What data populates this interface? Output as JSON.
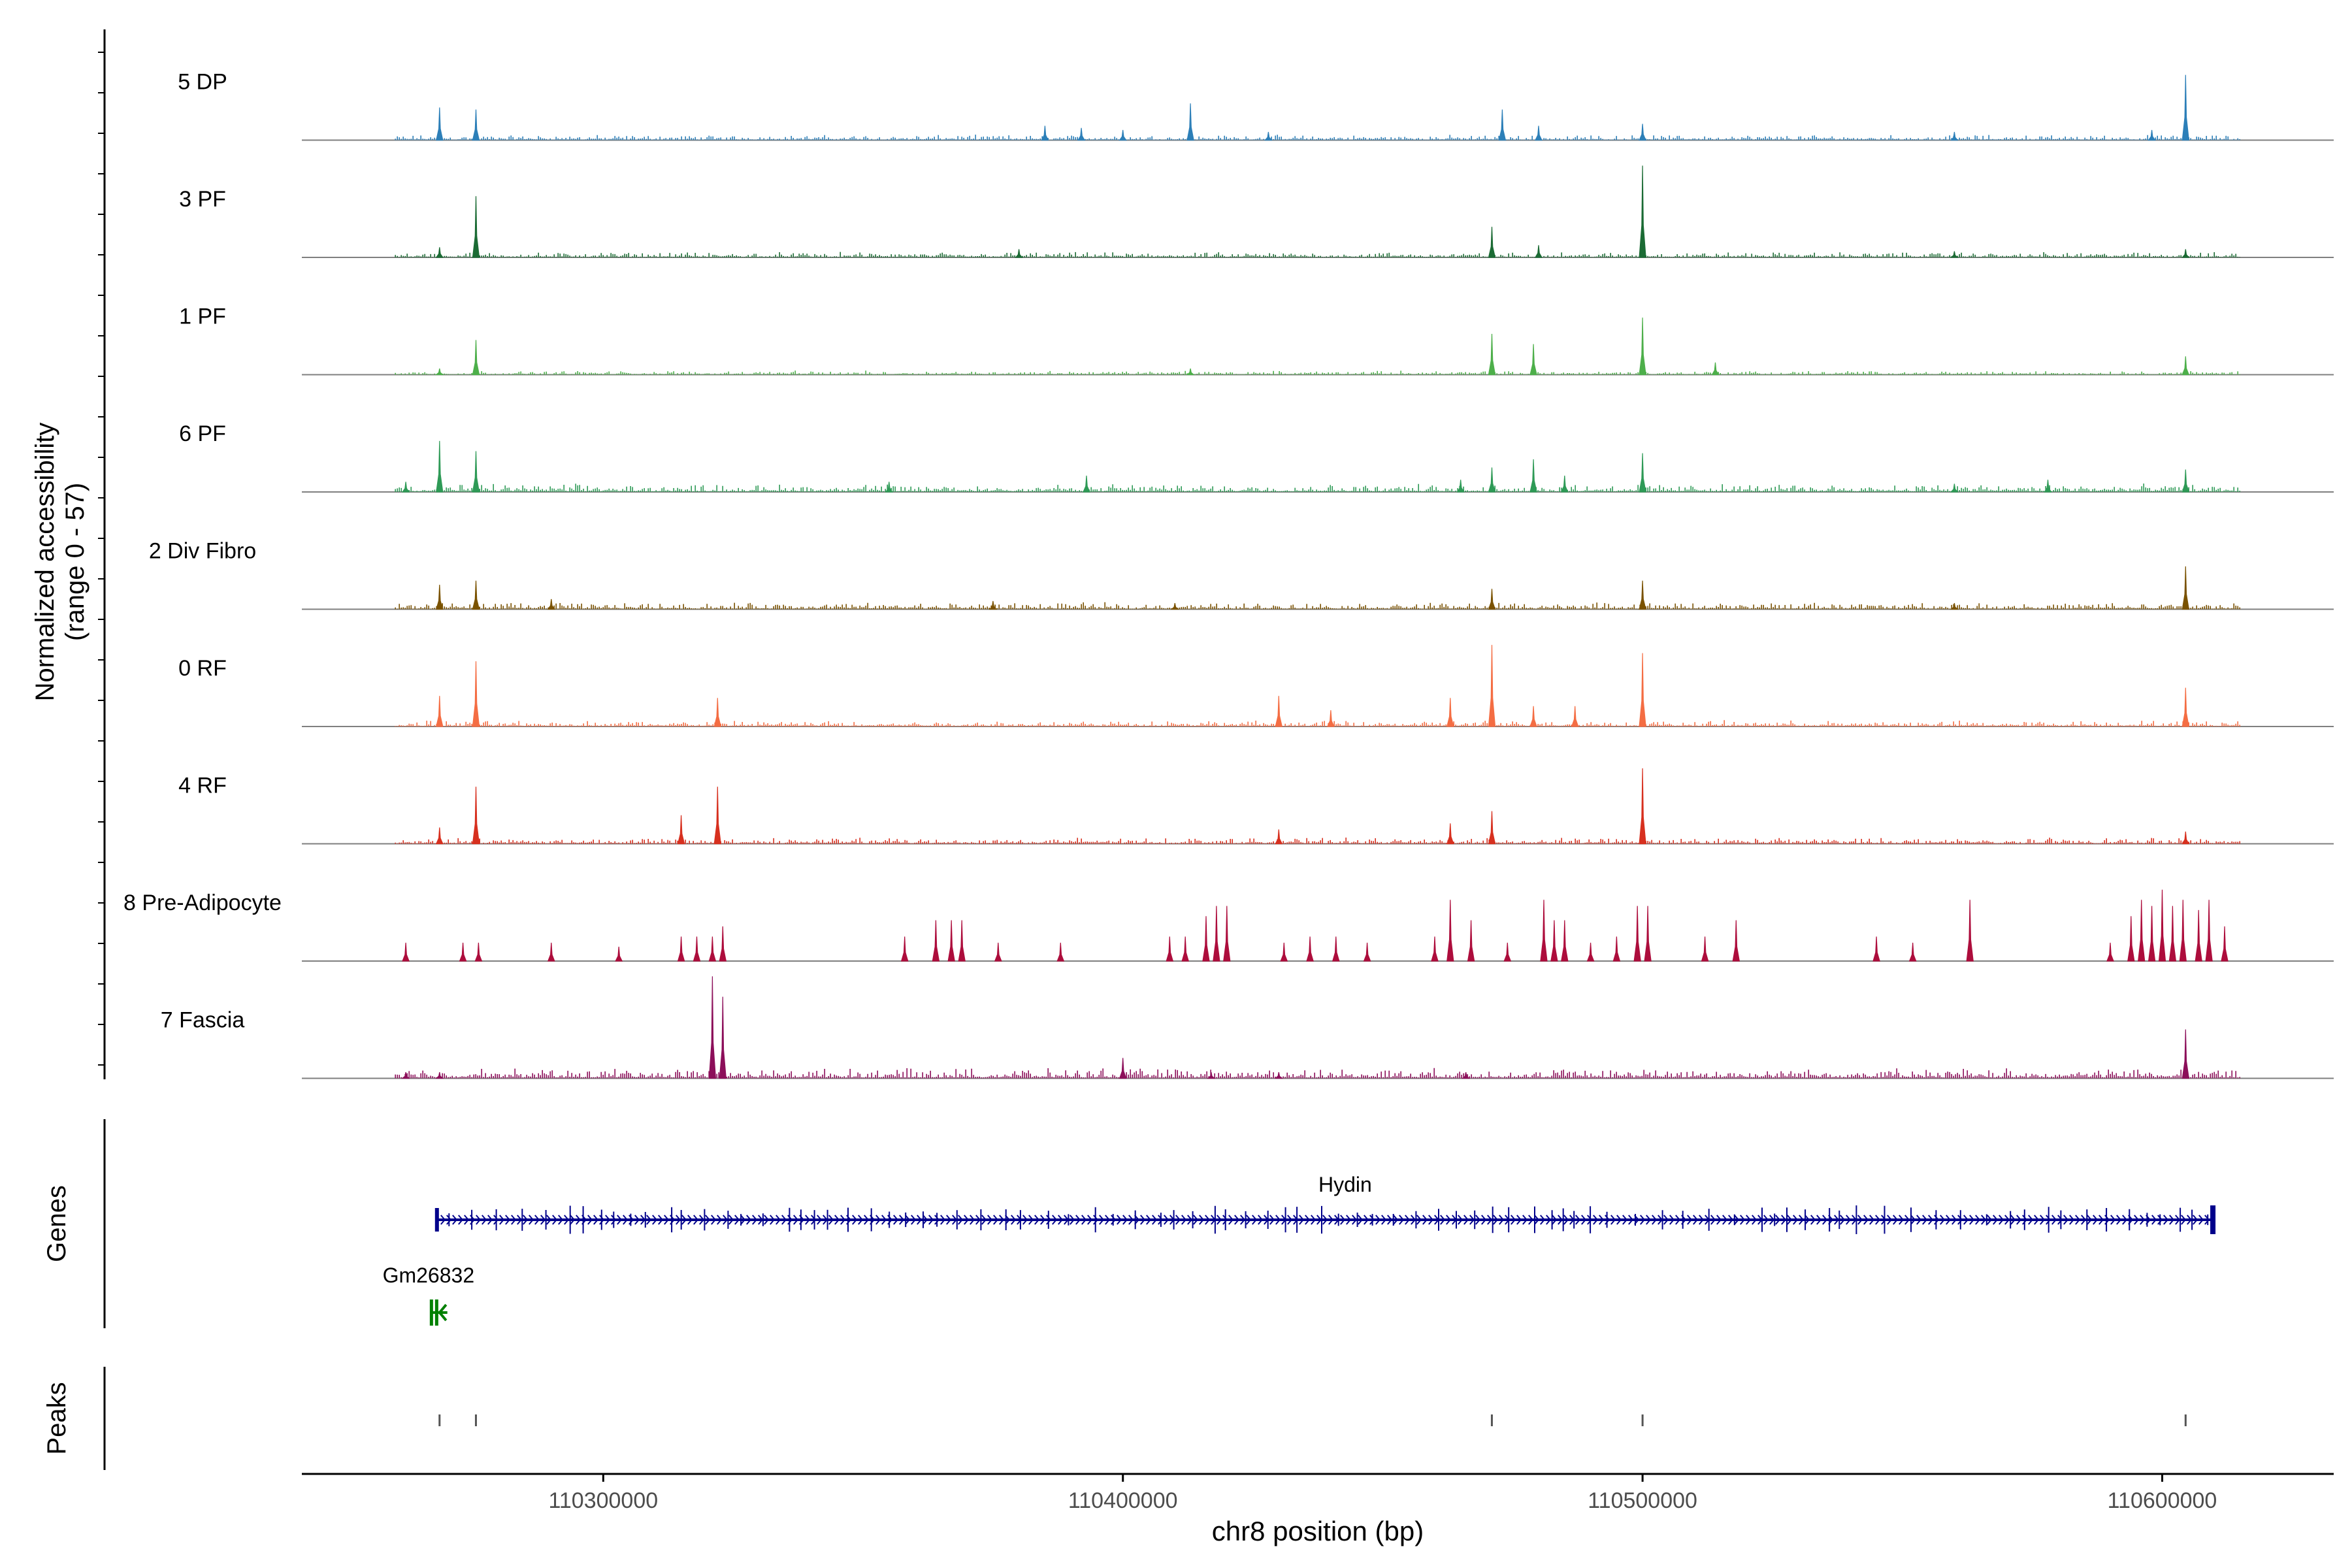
{
  "chart_data": {
    "type": "coverage-track",
    "y_axis_label_line1": "Normalized accessibility",
    "y_axis_label_line2": "(range 0 - 57)",
    "y_range": [
      0,
      57
    ],
    "x_axis_label": "chr8 position (bp)",
    "x_range": [
      110242000,
      110633000
    ],
    "x_ticks": [
      110300000,
      110400000,
      110500000,
      110600000
    ],
    "x_tick_labels": [
      "110300000",
      "110400000",
      "110500000",
      "110600000"
    ],
    "data_extent": [
      110260000,
      110615000
    ],
    "tracks": [
      {
        "name": "5 DP",
        "color": "#2c7fb8",
        "baseline": 0.8,
        "peaks": [
          [
            110268500,
            16
          ],
          [
            110275500,
            15
          ],
          [
            110385000,
            7
          ],
          [
            110392000,
            6
          ],
          [
            110400000,
            5
          ],
          [
            110413000,
            18
          ],
          [
            110428000,
            4
          ],
          [
            110473000,
            15
          ],
          [
            110480000,
            7
          ],
          [
            110500000,
            8
          ],
          [
            110560000,
            4
          ],
          [
            110598000,
            5
          ],
          [
            110604500,
            32
          ]
        ]
      },
      {
        "name": "3 PF",
        "color": "#1b6b34",
        "baseline": 0.8,
        "peaks": [
          [
            110268500,
            5
          ],
          [
            110275500,
            30
          ],
          [
            110380000,
            4
          ],
          [
            110471000,
            15
          ],
          [
            110480000,
            6
          ],
          [
            110500000,
            45
          ],
          [
            110560000,
            3
          ],
          [
            110604500,
            4
          ]
        ]
      },
      {
        "name": "1 PF",
        "color": "#4daf4a",
        "baseline": 0.6,
        "peaks": [
          [
            110268500,
            3
          ],
          [
            110275500,
            17
          ],
          [
            110413000,
            3
          ],
          [
            110471000,
            20
          ],
          [
            110479000,
            15
          ],
          [
            110500000,
            28
          ],
          [
            110514000,
            6
          ],
          [
            110604500,
            9
          ]
        ]
      },
      {
        "name": "6 PF",
        "color": "#2e9a56",
        "baseline": 1.2,
        "peaks": [
          [
            110262000,
            5
          ],
          [
            110268500,
            25
          ],
          [
            110275500,
            20
          ],
          [
            110355000,
            5
          ],
          [
            110393000,
            8
          ],
          [
            110465000,
            6
          ],
          [
            110471000,
            12
          ],
          [
            110479000,
            16
          ],
          [
            110485000,
            8
          ],
          [
            110500000,
            19
          ],
          [
            110560000,
            4
          ],
          [
            110578000,
            6
          ],
          [
            110604500,
            11
          ]
        ]
      },
      {
        "name": "2 Div Fibro",
        "color": "#7a5200",
        "baseline": 1.0,
        "peaks": [
          [
            110268500,
            12
          ],
          [
            110275500,
            14
          ],
          [
            110290000,
            5
          ],
          [
            110375000,
            4
          ],
          [
            110410000,
            3
          ],
          [
            110471000,
            10
          ],
          [
            110500000,
            14
          ],
          [
            110560000,
            3
          ],
          [
            110604500,
            21
          ]
        ]
      },
      {
        "name": "0 RF",
        "color": "#f46d43",
        "baseline": 0.9,
        "peaks": [
          [
            110268500,
            15
          ],
          [
            110275500,
            32
          ],
          [
            110322000,
            14
          ],
          [
            110430000,
            15
          ],
          [
            110440000,
            8
          ],
          [
            110463000,
            14
          ],
          [
            110471000,
            40
          ],
          [
            110479000,
            10
          ],
          [
            110487000,
            10
          ],
          [
            110500000,
            36
          ],
          [
            110604500,
            19
          ]
        ]
      },
      {
        "name": "4 RF",
        "color": "#d7301f",
        "baseline": 0.9,
        "peaks": [
          [
            110268500,
            8
          ],
          [
            110275500,
            28
          ],
          [
            110315000,
            14
          ],
          [
            110322000,
            28
          ],
          [
            110430000,
            7
          ],
          [
            110463000,
            10
          ],
          [
            110471000,
            16
          ],
          [
            110500000,
            37
          ],
          [
            110604500,
            6
          ]
        ]
      },
      {
        "name": "8 Pre-Adipocyte",
        "color": "#ad0d3c",
        "baseline": 0,
        "peaks": [
          [
            110262000,
            9
          ],
          [
            110273000,
            9
          ],
          [
            110276000,
            9
          ],
          [
            110290000,
            9
          ],
          [
            110303000,
            7
          ],
          [
            110315000,
            12
          ],
          [
            110318000,
            12
          ],
          [
            110321000,
            12
          ],
          [
            110323000,
            17
          ],
          [
            110358000,
            12
          ],
          [
            110364000,
            20
          ],
          [
            110367000,
            20
          ],
          [
            110369000,
            20
          ],
          [
            110376000,
            9
          ],
          [
            110388000,
            9
          ],
          [
            110409000,
            12
          ],
          [
            110412000,
            12
          ],
          [
            110416000,
            22
          ],
          [
            110418000,
            27
          ],
          [
            110420000,
            27
          ],
          [
            110431000,
            9
          ],
          [
            110436000,
            12
          ],
          [
            110441000,
            12
          ],
          [
            110447000,
            9
          ],
          [
            110460000,
            12
          ],
          [
            110463000,
            30
          ],
          [
            110467000,
            20
          ],
          [
            110474000,
            9
          ],
          [
            110481000,
            30
          ],
          [
            110483000,
            20
          ],
          [
            110485000,
            20
          ],
          [
            110490000,
            9
          ],
          [
            110495000,
            12
          ],
          [
            110499000,
            27
          ],
          [
            110501000,
            27
          ],
          [
            110512000,
            12
          ],
          [
            110518000,
            20
          ],
          [
            110545000,
            12
          ],
          [
            110552000,
            9
          ],
          [
            110563000,
            30
          ],
          [
            110590000,
            9
          ],
          [
            110594000,
            22
          ],
          [
            110596000,
            30
          ],
          [
            110598000,
            27
          ],
          [
            110600000,
            35
          ],
          [
            110602000,
            27
          ],
          [
            110604000,
            30
          ],
          [
            110607000,
            25
          ],
          [
            110609000,
            30
          ],
          [
            110612000,
            17
          ]
        ]
      },
      {
        "name": "7 Fascia",
        "color": "#8c0f5a",
        "baseline": 1.5,
        "peaks": [
          [
            110262000,
            3
          ],
          [
            110268500,
            3
          ],
          [
            110321000,
            50
          ],
          [
            110323000,
            40
          ],
          [
            110400000,
            10
          ],
          [
            110417000,
            3
          ],
          [
            110430000,
            3
          ],
          [
            110466000,
            3
          ],
          [
            110604500,
            24
          ]
        ]
      }
    ],
    "genes_label": "Genes",
    "genes": [
      {
        "name": "Hydin",
        "start": 110268000,
        "end": 110610000,
        "strand": "+",
        "color": "#00008b"
      },
      {
        "name": "Gm26832",
        "start": 110267000,
        "end": 110270000,
        "strand": "-",
        "color": "#008000"
      }
    ],
    "peaks_label": "Peaks",
    "peaks": [
      110268500,
      110275500,
      110471000,
      110500000,
      110604500
    ]
  }
}
